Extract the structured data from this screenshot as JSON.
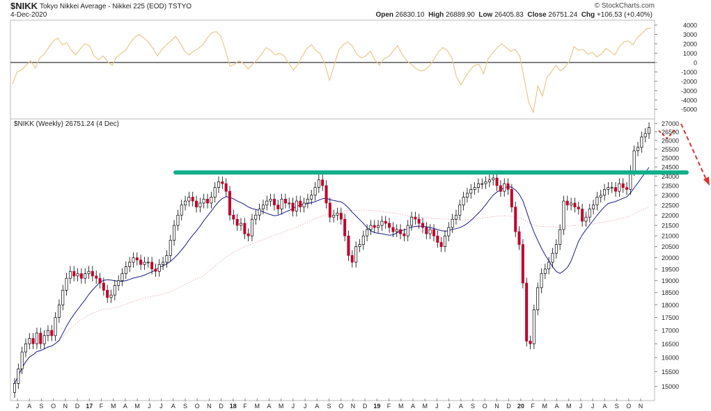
{
  "header": {
    "symbol": "$NIKK",
    "name": "Tokyo Nikkei Average - Nikkei 225 (EOD)",
    "exchange": "TSTYO",
    "date": "4-Dec-2020",
    "open_label": "Open",
    "open": "26830.10",
    "high_label": "High",
    "high": "26889.90",
    "low_label": "Low",
    "low": "26405.83",
    "close_label": "Close",
    "close": "26751.24",
    "chg_label": "Chg",
    "chg": "+106.53 (+0.40%)",
    "watermark": "© StockCharts.com"
  },
  "price_label": "$NIKK (Weekly) 26751.24 (4 Dec)",
  "colors": {
    "up_candle": "#ffffff",
    "down_candle": "#c0002a",
    "ma_short": "#1a1a8c",
    "ma_long": "#e0a0a0",
    "oscillator": "#e8c88a",
    "support_line": "#12b08a",
    "arrow": "#e03030"
  },
  "chart_data": [
    {
      "type": "line",
      "panel": "oscillator",
      "y_ticks": [
        4000,
        3000,
        2000,
        1000,
        0,
        -1000,
        -2000,
        -3000,
        -4000,
        -5000
      ],
      "ylim": [
        -5800,
        4300
      ],
      "zero_line": 0,
      "values": [
        -2300,
        -1000,
        -800,
        -300,
        200,
        -600,
        500,
        900,
        1600,
        2300,
        2600,
        1900,
        2100,
        1300,
        800,
        1500,
        2000,
        1800,
        700,
        300,
        700,
        100,
        -300,
        600,
        1000,
        1300,
        2100,
        2700,
        3000,
        2600,
        2200,
        1500,
        700,
        1400,
        1900,
        2300,
        2800,
        2100,
        1200,
        800,
        1200,
        1500,
        1900,
        2600,
        3200,
        3300,
        2800,
        1300,
        -400,
        -200,
        200,
        -100,
        -700,
        -200,
        300,
        900,
        1600,
        1300,
        800,
        1000,
        700,
        -100,
        -800,
        -200,
        700,
        1500,
        1900,
        1300,
        900,
        -200,
        -1900,
        -300,
        1300,
        1900,
        2200,
        1800,
        900,
        500,
        700,
        1200,
        300,
        -300,
        400,
        600,
        1200,
        1800,
        900,
        200,
        -200,
        -600,
        -900,
        -800,
        -400,
        300,
        1100,
        1600,
        1300,
        500,
        -1500,
        -2400,
        -1500,
        -800,
        -300,
        -200,
        -1200,
        400,
        1000,
        1600,
        2000,
        1600,
        1200,
        1400,
        700,
        -1800,
        -4300,
        -5300,
        -2500,
        -3600,
        -1600,
        -1000,
        -300,
        -900,
        -500,
        200,
        1700,
        1300,
        1400,
        900,
        1100,
        600,
        900,
        1500,
        1200,
        800,
        1700,
        2200,
        2300,
        1900,
        2700,
        3100,
        3600,
        3700
      ]
    },
    {
      "type": "candlestick",
      "panel": "price",
      "title": "$NIKK (Weekly) 26751.24 (4 Dec)",
      "x_tick_labels": [
        "J",
        "A",
        "S",
        "O",
        "N",
        "D",
        "17",
        "F",
        "M",
        "A",
        "M",
        "J",
        "J",
        "A",
        "S",
        "O",
        "N",
        "D",
        "18",
        "F",
        "M",
        "A",
        "M",
        "J",
        "J",
        "A",
        "S",
        "O",
        "N",
        "D",
        "19",
        "F",
        "M",
        "A",
        "M",
        "J",
        "J",
        "A",
        "S",
        "O",
        "N",
        "D",
        "20",
        "F",
        "M",
        "A",
        "M",
        "J",
        "J",
        "A",
        "S",
        "O",
        "N"
      ],
      "y_ticks": [
        27000,
        26500,
        26000,
        25500,
        25000,
        24500,
        24000,
        23500,
        23000,
        22500,
        22000,
        21500,
        21000,
        20500,
        20000,
        19500,
        19000,
        18500,
        18000,
        17500,
        17000,
        16500,
        16000,
        15500,
        15000
      ],
      "ylim": [
        14600,
        27150
      ],
      "scale": "log",
      "closes": [
        15100,
        15600,
        16200,
        16500,
        16700,
        16500,
        16900,
        16500,
        16800,
        17000,
        16800,
        17500,
        18000,
        18600,
        19100,
        19400,
        19200,
        19300,
        19100,
        19300,
        19400,
        19200,
        19100,
        18900,
        18600,
        18300,
        18400,
        18800,
        19000,
        19300,
        19600,
        19800,
        20000,
        19900,
        19700,
        19800,
        19800,
        19500,
        19400,
        19700,
        19800,
        20100,
        20800,
        21500,
        22000,
        22500,
        22700,
        22900,
        22700,
        22400,
        22600,
        22800,
        22600,
        22900,
        23400,
        23700,
        23600,
        23200,
        22000,
        21800,
        21500,
        21600,
        21100,
        21000,
        21800,
        22000,
        22300,
        22500,
        22700,
        22800,
        22500,
        22300,
        22800,
        22600,
        22600,
        22200,
        22700,
        22400,
        22600,
        22800,
        23000,
        23400,
        23800,
        23500,
        22600,
        21900,
        22000,
        22100,
        21800,
        21000,
        20100,
        19800,
        20500,
        20600,
        21000,
        21300,
        21500,
        21400,
        21500,
        21700,
        21600,
        21400,
        21200,
        21300,
        21100,
        21000,
        21500,
        21900,
        21800,
        21600,
        21400,
        21100,
        21300,
        21000,
        20700,
        20500,
        21000,
        21400,
        21800,
        22000,
        22500,
        22900,
        23100,
        23300,
        23400,
        23600,
        23600,
        23700,
        23800,
        23900,
        23500,
        23200,
        23600,
        23300,
        22400,
        21200,
        20600,
        18900,
        16600,
        16500,
        17800,
        18700,
        19300,
        19500,
        19800,
        20200,
        20600,
        21300,
        22700,
        22500,
        22600,
        22400,
        22300,
        21700,
        21900,
        22300,
        22500,
        22900,
        23000,
        23300,
        23400,
        23400,
        23200,
        23600,
        23400,
        23300,
        24300,
        25400,
        25600,
        26200,
        26400,
        26751
      ],
      "series": [
        {
          "name": "MA short",
          "type": "line"
        },
        {
          "name": "MA long",
          "type": "line",
          "style": "dotted"
        }
      ],
      "annotations": [
        {
          "type": "horizontal_line",
          "y": 24200,
          "color": "#12b08a"
        }
      ]
    }
  ]
}
